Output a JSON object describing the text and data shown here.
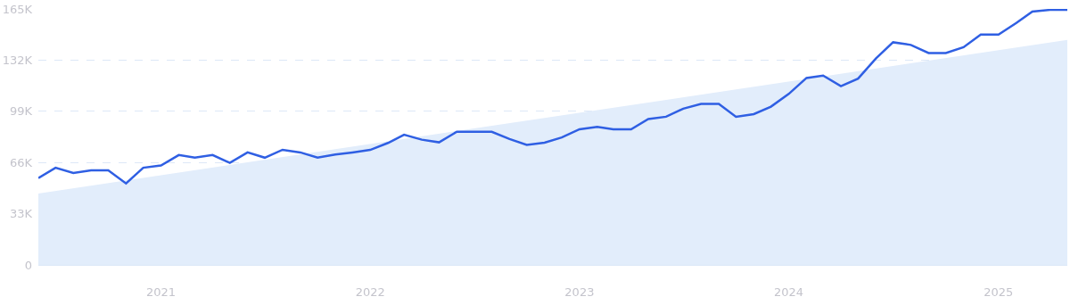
{
  "chart_data": {
    "type": "line",
    "x": [
      "2020-06",
      "2020-07",
      "2020-08",
      "2020-09",
      "2020-10",
      "2020-11",
      "2020-12",
      "2021-01",
      "2021-02",
      "2021-03",
      "2021-04",
      "2021-05",
      "2021-06",
      "2021-07",
      "2021-08",
      "2021-09",
      "2021-10",
      "2021-11",
      "2021-12",
      "2022-01",
      "2022-02",
      "2022-03",
      "2022-04",
      "2022-05",
      "2022-06",
      "2022-07",
      "2022-08",
      "2022-09",
      "2022-10",
      "2022-11",
      "2022-12",
      "2023-01",
      "2023-02",
      "2023-03",
      "2023-04",
      "2023-05",
      "2023-06",
      "2023-07",
      "2023-08",
      "2023-09",
      "2023-10",
      "2023-11",
      "2023-12",
      "2024-01",
      "2024-02",
      "2024-03",
      "2024-04",
      "2024-05",
      "2024-06",
      "2024-07",
      "2024-08",
      "2024-09",
      "2024-10",
      "2024-11",
      "2024-12",
      "2025-01",
      "2025-02",
      "2025-03",
      "2025-04",
      "2025-05"
    ],
    "series": [
      {
        "type": "area",
        "color": "#e2edfb",
        "x": [
          "2020-06",
          "2025-05"
        ],
        "values": [
          46000,
          145000
        ]
      },
      {
        "color": "#2f5fe3",
        "values": [
          56000,
          62600,
          59200,
          60900,
          60900,
          52500,
          62600,
          64100,
          70800,
          69100,
          70800,
          65800,
          72500,
          69100,
          74200,
          72500,
          69100,
          71100,
          72500,
          74100,
          78600,
          83900,
          80700,
          79000,
          85800,
          85800,
          85800,
          81100,
          77300,
          78800,
          82100,
          87400,
          88900,
          87400,
          87400,
          94000,
          95500,
          100700,
          103800,
          103800,
          95500,
          97200,
          102000,
          110200,
          120500,
          122000,
          115200,
          120100,
          133000,
          143500,
          141800,
          136600,
          136600,
          140300,
          148500,
          148500,
          155900,
          163300,
          164400,
          164400
        ]
      }
    ],
    "xlim": [
      "2020-06",
      "2025-05"
    ],
    "xticks": [
      {
        "value": "2021-01",
        "label": "2021"
      },
      {
        "value": "2022-01",
        "label": "2022"
      },
      {
        "value": "2023-01",
        "label": "2023"
      },
      {
        "value": "2024-01",
        "label": "2024"
      },
      {
        "value": "2025-01",
        "label": "2025"
      }
    ],
    "ylim": [
      0,
      165000
    ],
    "yticks": [
      {
        "value": 0,
        "label": "0"
      },
      {
        "value": 33000,
        "label": "33K"
      },
      {
        "value": 66000,
        "label": "66K"
      },
      {
        "value": 99000,
        "label": "99K"
      },
      {
        "value": 132000,
        "label": "132K"
      },
      {
        "value": 165000,
        "label": "165K"
      }
    ],
    "grid": "y",
    "marker": "none",
    "line_style": "solid"
  }
}
